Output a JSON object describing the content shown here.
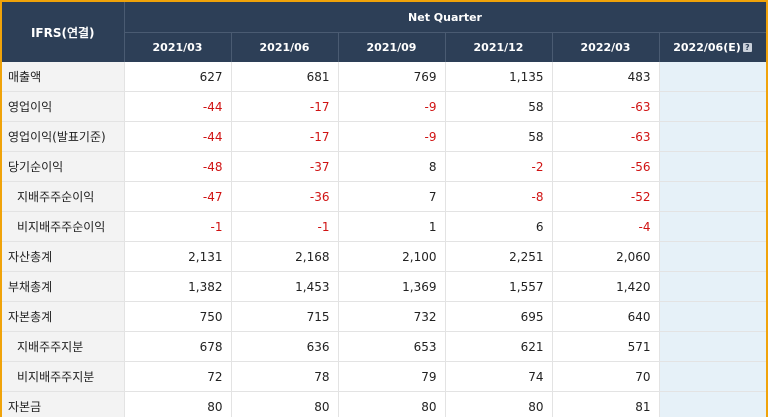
{
  "table": {
    "corner_label": "IFRS(연결)",
    "group_header": "Net Quarter",
    "periods": [
      "2021/03",
      "2021/06",
      "2021/09",
      "2021/12",
      "2022/03",
      "2022/06(E)"
    ],
    "rows": [
      {
        "label": "매출액",
        "sub": false,
        "values": [
          "627",
          "681",
          "769",
          "1,135",
          "483",
          ""
        ]
      },
      {
        "label": "영업이익",
        "sub": false,
        "values": [
          "-44",
          "-17",
          "-9",
          "58",
          "-63",
          ""
        ]
      },
      {
        "label": "영업이익(발표기준)",
        "sub": false,
        "values": [
          "-44",
          "-17",
          "-9",
          "58",
          "-63",
          ""
        ]
      },
      {
        "label": "당기순이익",
        "sub": false,
        "values": [
          "-48",
          "-37",
          "8",
          "-2",
          "-56",
          ""
        ]
      },
      {
        "label": "지배주주순이익",
        "sub": true,
        "values": [
          "-47",
          "-36",
          "7",
          "-8",
          "-52",
          ""
        ]
      },
      {
        "label": "비지배주주순이익",
        "sub": true,
        "values": [
          "-1",
          "-1",
          "1",
          "6",
          "-4",
          ""
        ]
      },
      {
        "label": "자산총계",
        "sub": false,
        "values": [
          "2,131",
          "2,168",
          "2,100",
          "2,251",
          "2,060",
          ""
        ]
      },
      {
        "label": "부채총계",
        "sub": false,
        "values": [
          "1,382",
          "1,453",
          "1,369",
          "1,557",
          "1,420",
          ""
        ]
      },
      {
        "label": "자본총계",
        "sub": false,
        "values": [
          "750",
          "715",
          "732",
          "695",
          "640",
          ""
        ]
      },
      {
        "label": "지배주주지분",
        "sub": true,
        "values": [
          "678",
          "636",
          "653",
          "621",
          "571",
          ""
        ]
      },
      {
        "label": "비지배주주지분",
        "sub": true,
        "values": [
          "72",
          "78",
          "79",
          "74",
          "70",
          ""
        ]
      },
      {
        "label": "자본금",
        "sub": false,
        "values": [
          "80",
          "80",
          "80",
          "80",
          "81",
          ""
        ]
      }
    ]
  },
  "colors": {
    "header_bg": "#2d3f57",
    "negative": "#d01313",
    "estimate_bg": "#e6f1f8",
    "frame_border": "#f0a30a"
  },
  "icons": {
    "estimate_help": "question-icon"
  }
}
